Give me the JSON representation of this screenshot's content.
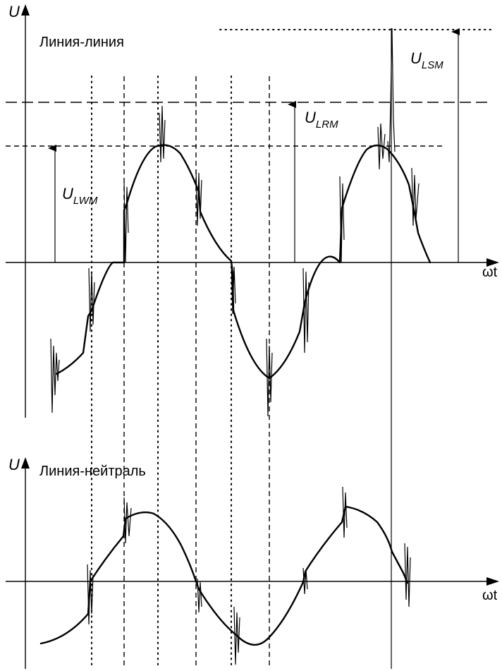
{
  "top_panel": {
    "y_axis_label": "U",
    "x_axis_label": "ωt",
    "title": "Линия-линия",
    "annotations": {
      "ulwm": {
        "main": "U",
        "sub": "LWM"
      },
      "ulrm": {
        "main": "U",
        "sub": "LRM"
      },
      "ulsm": {
        "main": "U",
        "sub": "LSM"
      }
    }
  },
  "bottom_panel": {
    "y_axis_label": "U",
    "x_axis_label": "ωt",
    "title": "Линия-нейтраль"
  },
  "icons": [
    "arrow-up-icon",
    "arrow-right-icon"
  ],
  "colors": {
    "ink": "#000000",
    "background": "#ffffff"
  }
}
